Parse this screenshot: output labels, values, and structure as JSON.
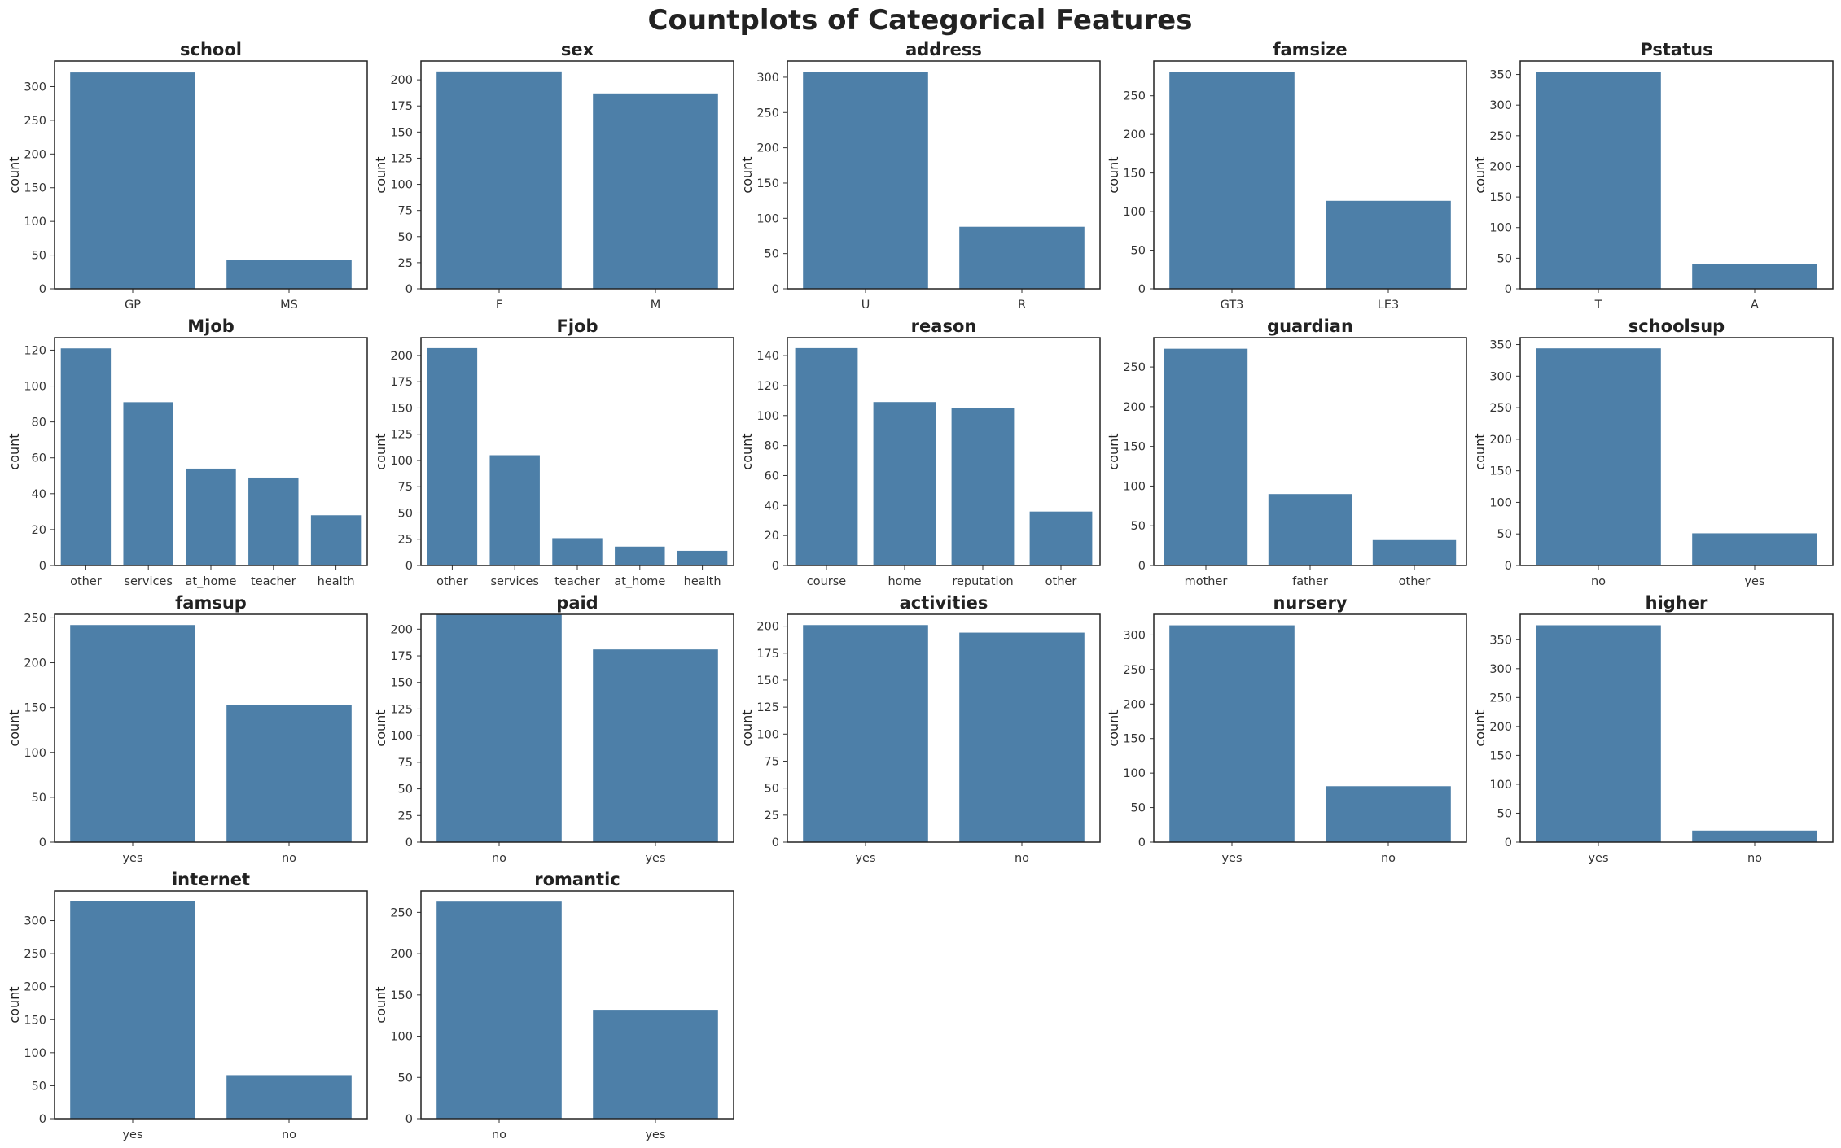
{
  "title": "Countplots of Categorical Features",
  "bar_color": "#4d7fa8",
  "chart_data": [
    {
      "type": "bar",
      "title": "school",
      "ylabel": "count",
      "categories": [
        "GP",
        "MS"
      ],
      "values": [
        321,
        43
      ],
      "ylim": [
        0,
        338
      ],
      "yticks": [
        0,
        50,
        100,
        150,
        200,
        250,
        300
      ]
    },
    {
      "type": "bar",
      "title": "sex",
      "ylabel": "count",
      "categories": [
        "F",
        "M"
      ],
      "values": [
        208,
        187
      ],
      "ylim": [
        0,
        218
      ],
      "yticks": [
        0,
        25,
        50,
        75,
        100,
        125,
        150,
        175,
        200
      ]
    },
    {
      "type": "bar",
      "title": "address",
      "ylabel": "count",
      "categories": [
        "U",
        "R"
      ],
      "values": [
        307,
        88
      ],
      "ylim": [
        0,
        323
      ],
      "yticks": [
        0,
        50,
        100,
        150,
        200,
        250,
        300
      ]
    },
    {
      "type": "bar",
      "title": "famsize",
      "ylabel": "count",
      "categories": [
        "GT3",
        "LE3"
      ],
      "values": [
        281,
        114
      ],
      "ylim": [
        0,
        295
      ],
      "yticks": [
        0,
        50,
        100,
        150,
        200,
        250
      ]
    },
    {
      "type": "bar",
      "title": "Pstatus",
      "ylabel": "count",
      "categories": [
        "T",
        "A"
      ],
      "values": [
        354,
        41
      ],
      "ylim": [
        0,
        372
      ],
      "yticks": [
        0,
        50,
        100,
        150,
        200,
        250,
        300,
        350
      ]
    },
    {
      "type": "bar",
      "title": "Mjob",
      "ylabel": "count",
      "categories": [
        "other",
        "services",
        "at_home",
        "teacher",
        "health"
      ],
      "values": [
        121,
        91,
        54,
        49,
        28
      ],
      "ylim": [
        0,
        127
      ],
      "yticks": [
        0,
        20,
        40,
        60,
        80,
        100,
        120
      ]
    },
    {
      "type": "bar",
      "title": "Fjob",
      "ylabel": "count",
      "categories": [
        "other",
        "services",
        "teacher",
        "at_home",
        "health"
      ],
      "values": [
        207,
        105,
        26,
        18,
        14
      ],
      "ylim": [
        0,
        217
      ],
      "yticks": [
        0,
        25,
        50,
        75,
        100,
        125,
        150,
        175,
        200
      ]
    },
    {
      "type": "bar",
      "title": "reason",
      "ylabel": "count",
      "categories": [
        "course",
        "home",
        "reputation",
        "other"
      ],
      "values": [
        145,
        109,
        105,
        36
      ],
      "ylim": [
        0,
        152
      ],
      "yticks": [
        0,
        20,
        40,
        60,
        80,
        100,
        120,
        140
      ]
    },
    {
      "type": "bar",
      "title": "guardian",
      "ylabel": "count",
      "categories": [
        "mother",
        "father",
        "other"
      ],
      "values": [
        273,
        90,
        32
      ],
      "ylim": [
        0,
        287
      ],
      "yticks": [
        0,
        50,
        100,
        150,
        200,
        250
      ]
    },
    {
      "type": "bar",
      "title": "schoolsup",
      "ylabel": "count",
      "categories": [
        "no",
        "yes"
      ],
      "values": [
        344,
        51
      ],
      "ylim": [
        0,
        361
      ],
      "yticks": [
        0,
        50,
        100,
        150,
        200,
        250,
        300,
        350
      ]
    },
    {
      "type": "bar",
      "title": "famsup",
      "ylabel": "count",
      "categories": [
        "yes",
        "no"
      ],
      "values": [
        242,
        153
      ],
      "ylim": [
        0,
        254
      ],
      "yticks": [
        0,
        50,
        100,
        150,
        200,
        250
      ]
    },
    {
      "type": "bar",
      "title": "paid",
      "ylabel": "count",
      "categories": [
        "no",
        "yes"
      ],
      "values": [
        214,
        181
      ],
      "ylim": [
        0,
        214
      ],
      "yticks": [
        0,
        25,
        50,
        75,
        100,
        125,
        150,
        175,
        200
      ]
    },
    {
      "type": "bar",
      "title": "activities",
      "ylabel": "count",
      "categories": [
        "yes",
        "no"
      ],
      "values": [
        201,
        194
      ],
      "ylim": [
        0,
        211
      ],
      "yticks": [
        0,
        25,
        50,
        75,
        100,
        125,
        150,
        175,
        200
      ]
    },
    {
      "type": "bar",
      "title": "nursery",
      "ylabel": "count",
      "categories": [
        "yes",
        "no"
      ],
      "values": [
        314,
        81
      ],
      "ylim": [
        0,
        330
      ],
      "yticks": [
        0,
        50,
        100,
        150,
        200,
        250,
        300
      ]
    },
    {
      "type": "bar",
      "title": "higher",
      "ylabel": "count",
      "categories": [
        "yes",
        "no"
      ],
      "values": [
        375,
        20
      ],
      "ylim": [
        0,
        394
      ],
      "yticks": [
        0,
        50,
        100,
        150,
        200,
        250,
        300,
        350
      ]
    },
    {
      "type": "bar",
      "title": "internet",
      "ylabel": "count",
      "categories": [
        "yes",
        "no"
      ],
      "values": [
        329,
        66
      ],
      "ylim": [
        0,
        345
      ],
      "yticks": [
        0,
        50,
        100,
        150,
        200,
        250,
        300
      ]
    },
    {
      "type": "bar",
      "title": "romantic",
      "ylabel": "count",
      "categories": [
        "no",
        "yes"
      ],
      "values": [
        263,
        132
      ],
      "ylim": [
        0,
        276
      ],
      "yticks": [
        0,
        50,
        100,
        150,
        200,
        250
      ]
    }
  ]
}
